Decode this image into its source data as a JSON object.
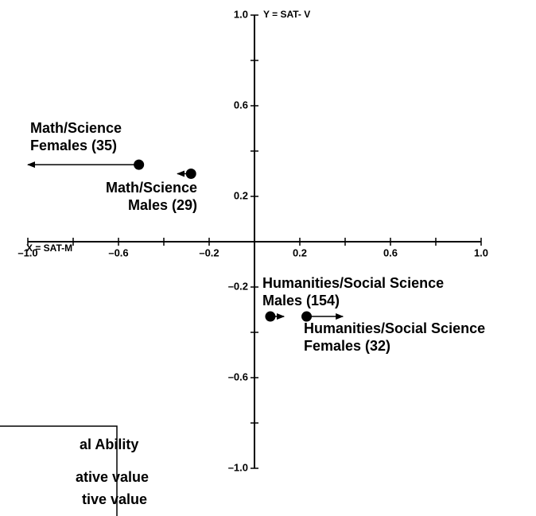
{
  "chart_data": {
    "type": "scatter",
    "xlabel": "X = SAT-M",
    "ylabel": "Y = SAT- V",
    "xlim": [
      -1.0,
      1.0
    ],
    "ylim": [
      -1.0,
      1.0
    ],
    "xticks": [
      {
        "value": -1.0,
        "label": "–1.0"
      },
      {
        "value": -0.6,
        "label": "–0.6"
      },
      {
        "value": -0.2,
        "label": "–0.2"
      },
      0.2,
      0.6,
      {
        "value": 1.0,
        "label": "1.0"
      }
    ],
    "yticks": [
      {
        "value": 1.0,
        "label": "1.0"
      },
      0.6,
      0.2,
      {
        "value": -0.2,
        "label": "–0.2"
      },
      {
        "value": -0.6,
        "label": "–0.6"
      },
      {
        "value": -1.0,
        "label": "–1.0"
      }
    ],
    "xminor": [
      -0.8,
      -0.4,
      0.4,
      0.8
    ],
    "yminor": [
      0.8,
      0.4,
      -0.4,
      -0.8
    ],
    "color": "#000000",
    "points": [
      {
        "label": [
          "Math/Science",
          "Females (35)"
        ],
        "x": -0.51,
        "y": 0.34,
        "arrow_to": -1.0
      },
      {
        "label": [
          "Math/Science",
          "Males (29)"
        ],
        "x": -0.28,
        "y": 0.3,
        "arrow_to": -0.34
      },
      {
        "label": [
          "Humanities/Social Science",
          "Males (154)"
        ],
        "x": 0.07,
        "y": -0.33,
        "arrow_to": 0.13
      },
      {
        "label": [
          "Humanities/Social Science",
          "Females (32)"
        ],
        "x": 0.23,
        "y": -0.33,
        "arrow_to": 0.39
      }
    ],
    "legend": [
      "al Ability",
      "ative value",
      "tive value"
    ]
  }
}
